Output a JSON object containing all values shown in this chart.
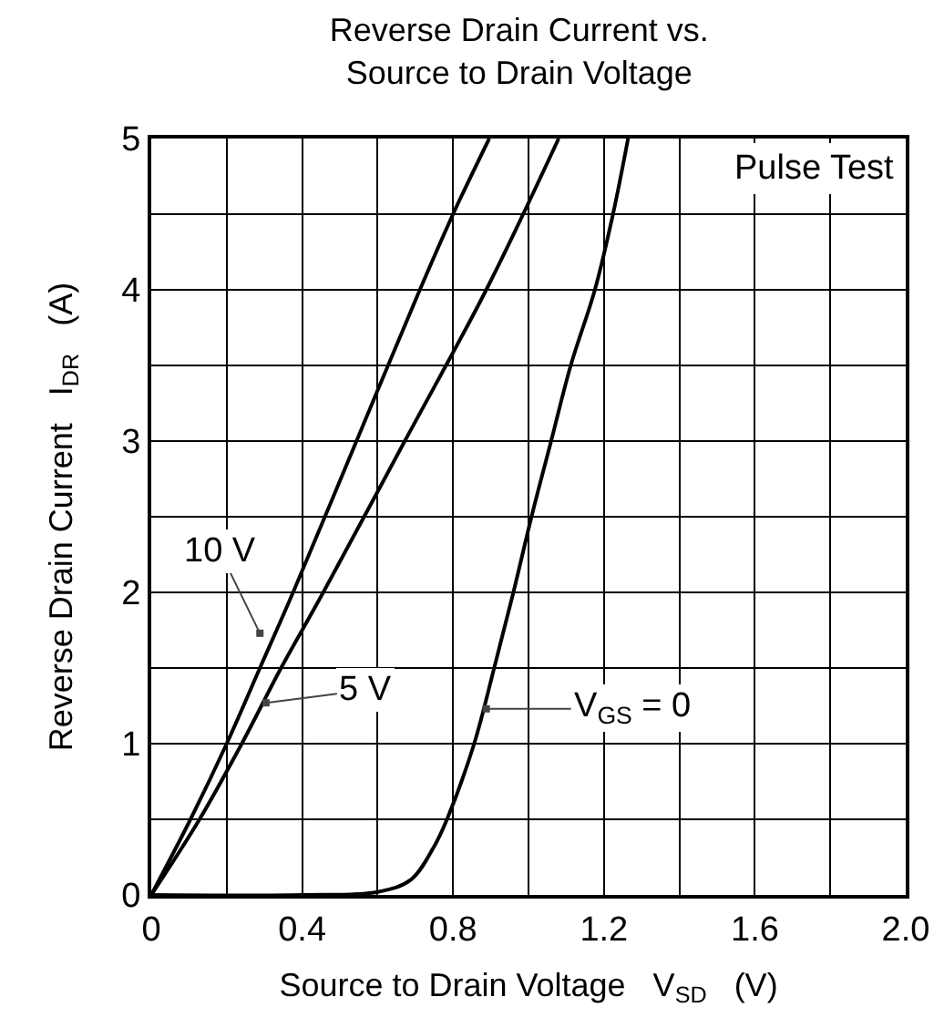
{
  "chart_data": {
    "type": "line",
    "title": "Reverse Drain Current vs.\nSource to Drain Voltage",
    "xlabel": "Source to Drain Voltage   V$_{SD}$   (V)",
    "ylabel": "Reverse Drain Current   I$_{DR}$   (A)",
    "series": [
      {
        "color": "#000000",
        "x": [
          0,
          0.104,
          0.2,
          0.288,
          0.376,
          0.544,
          0.712,
          0.8,
          0.896
        ],
        "values": [
          0,
          0.5,
          1,
          1.5,
          2,
          3,
          4,
          4.5,
          5
        ]
      },
      {
        "color": "#000000",
        "x": [
          0,
          0.128,
          0.24,
          0.344,
          0.456,
          0.672,
          0.888,
          1.08
        ],
        "values": [
          0,
          0.5,
          1,
          1.5,
          2,
          3,
          4,
          5
        ]
      },
      {
        "color": "#000000",
        "x": [
          0,
          0.4,
          0.6,
          0.688,
          0.752,
          0.784,
          0.856,
          0.909,
          0.96,
          1.008,
          1.06,
          1.112,
          1.176,
          1.224,
          1.264
        ],
        "values": [
          0,
          0,
          0.02,
          0.1,
          0.33,
          0.5,
          1,
          1.5,
          2,
          2.5,
          3,
          3.5,
          4,
          4.5,
          5
        ]
      }
    ],
    "annotations": [
      {
        "text": "10 V",
        "x": 0.288,
        "y": 1.73
      },
      {
        "text": "5 V",
        "x": 0.304,
        "y": 1.27
      },
      {
        "text": "V$_{GS}$ = 0",
        "x": 0.888,
        "y": 1.23
      },
      "Pulse Test"
    ],
    "xlim": [
      0,
      2
    ],
    "ylim": [
      0,
      5
    ],
    "xticks": [
      0,
      {
        "value": 0.2,
        "label": null
      },
      0.4,
      {
        "value": 0.6,
        "label": null
      },
      0.8,
      {
        "value": 1,
        "label": null
      },
      1.2,
      {
        "value": 1.4,
        "label": null
      },
      1.6,
      {
        "value": 1.8,
        "label": null
      },
      {
        "value": 2,
        "label": "2.0"
      }
    ],
    "yticks": [
      0,
      {
        "value": 0.5,
        "label": null
      },
      1,
      {
        "value": 1.5,
        "label": null
      },
      2,
      {
        "value": 2.5,
        "label": null
      },
      3,
      {
        "value": 3.5,
        "label": null
      },
      4,
      {
        "value": 4.5,
        "label": null
      },
      5
    ],
    "grid": true,
    "marker": "none",
    "line_style": "solid"
  }
}
